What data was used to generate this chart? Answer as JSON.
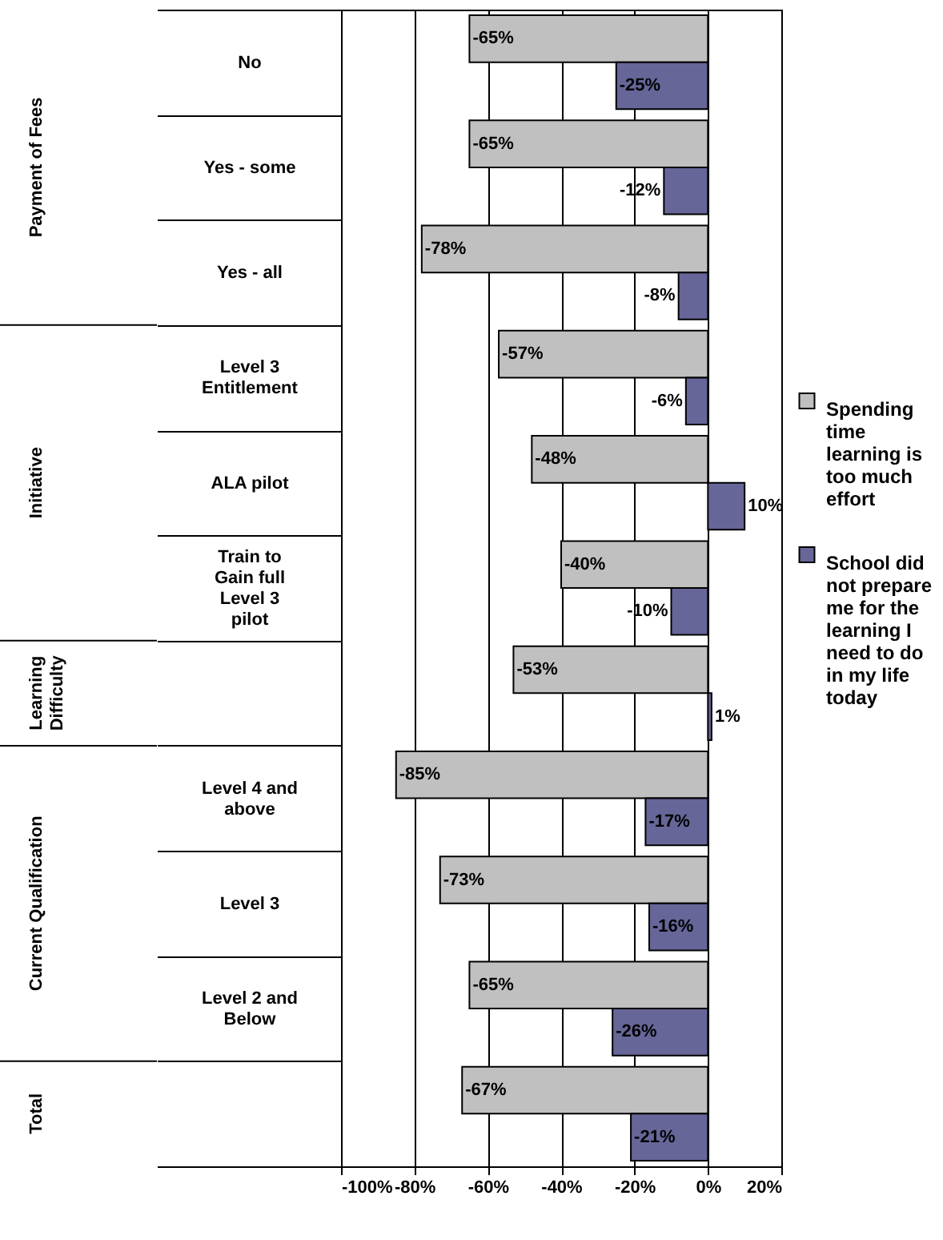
{
  "chart_data": {
    "type": "bar",
    "orientation": "horizontal",
    "categories": [
      "No",
      "Yes - some",
      "Yes - all",
      "Level 3 Entitlement",
      "ALA pilot",
      "Train to Gain full Level 3 pilot",
      null,
      "Level 4 and above",
      "Level 3",
      "Level 2 and Below",
      null
    ],
    "series": [
      {
        "name": "Spending time learning is too much effort",
        "color": "#c0c0c0",
        "values": [
          -65,
          -65,
          -78,
          -57,
          -48,
          -40,
          -53,
          -85,
          -73,
          -65,
          -67
        ],
        "value_labels": [
          "-65%",
          "-65%",
          "-78%",
          "-57%",
          "-48%",
          "-40%",
          "-53%",
          "-85%",
          "-73%",
          "-65%",
          "-67%"
        ]
      },
      {
        "name": "School did not prepare me for the learning I need to do in my life today",
        "color": "#666699",
        "values": [
          -25,
          -12,
          -8,
          -6,
          10,
          -10,
          1,
          -17,
          -16,
          -26,
          -21
        ],
        "value_labels": [
          "-25%",
          "-12%",
          "-8%",
          "-6%",
          "10%",
          "-10%",
          "1%",
          "-17%",
          "-16%",
          "-26%",
          "-21%"
        ]
      }
    ],
    "xlim": [
      -100,
      20
    ],
    "xticks": [
      {
        "value": -100,
        "label": "-100%"
      },
      {
        "value": -80,
        "label": "-80%"
      },
      {
        "value": -60,
        "label": "-60%"
      },
      {
        "value": -40,
        "label": "-40%"
      },
      {
        "value": -20,
        "label": "-20%"
      },
      {
        "value": 0,
        "label": "0%"
      },
      {
        "value": 20,
        "label": "20%"
      }
    ],
    "annotations": [
      "Payment of Fees",
      "Initiative",
      "Learning Difficulty",
      "Current Qualification",
      "Total"
    ],
    "grid": "x",
    "legend": "right"
  }
}
